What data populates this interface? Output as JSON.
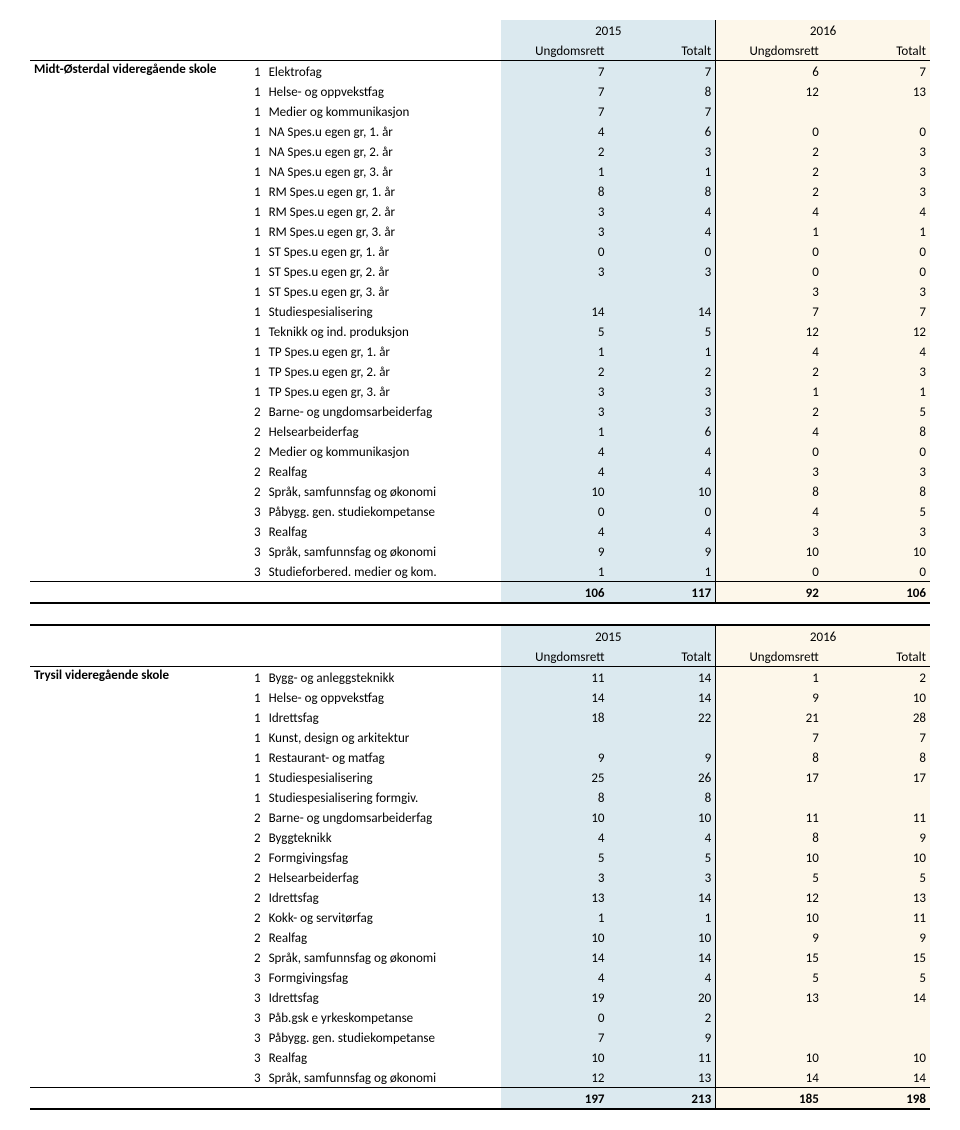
{
  "header": {
    "year_2015": "2015",
    "year_2016": "2016",
    "ungdomsrett": "Ungdomsrett",
    "totalt": "Totalt"
  },
  "blocks": [
    {
      "school": "Midt-Østerdal videregående skole",
      "rows": [
        {
          "level": "1",
          "course": "Elektrofag",
          "u15": "7",
          "t15": "7",
          "u16": "6",
          "t16": "7"
        },
        {
          "level": "1",
          "course": "Helse- og oppvekstfag",
          "u15": "7",
          "t15": "8",
          "u16": "12",
          "t16": "13"
        },
        {
          "level": "1",
          "course": "Medier og kommunikasjon",
          "u15": "7",
          "t15": "7",
          "u16": "",
          "t16": ""
        },
        {
          "level": "1",
          "course": "NA Spes.u egen gr, 1. år",
          "u15": "4",
          "t15": "6",
          "u16": "0",
          "t16": "0"
        },
        {
          "level": "1",
          "course": "NA Spes.u egen gr, 2. år",
          "u15": "2",
          "t15": "3",
          "u16": "2",
          "t16": "3"
        },
        {
          "level": "1",
          "course": "NA Spes.u egen gr, 3. år",
          "u15": "1",
          "t15": "1",
          "u16": "2",
          "t16": "3"
        },
        {
          "level": "1",
          "course": "RM Spes.u egen gr, 1. år",
          "u15": "8",
          "t15": "8",
          "u16": "2",
          "t16": "3"
        },
        {
          "level": "1",
          "course": "RM Spes.u egen gr, 2. år",
          "u15": "3",
          "t15": "4",
          "u16": "4",
          "t16": "4"
        },
        {
          "level": "1",
          "course": "RM Spes.u egen gr, 3. år",
          "u15": "3",
          "t15": "4",
          "u16": "1",
          "t16": "1"
        },
        {
          "level": "1",
          "course": "ST Spes.u egen gr, 1. år",
          "u15": "0",
          "t15": "0",
          "u16": "0",
          "t16": "0"
        },
        {
          "level": "1",
          "course": "ST Spes.u egen gr, 2. år",
          "u15": "3",
          "t15": "3",
          "u16": "0",
          "t16": "0"
        },
        {
          "level": "1",
          "course": "ST Spes.u egen gr, 3. år",
          "u15": "",
          "t15": "",
          "u16": "3",
          "t16": "3"
        },
        {
          "level": "1",
          "course": "Studiespesialisering",
          "u15": "14",
          "t15": "14",
          "u16": "7",
          "t16": "7"
        },
        {
          "level": "1",
          "course": "Teknikk og ind. produksjon",
          "u15": "5",
          "t15": "5",
          "u16": "12",
          "t16": "12"
        },
        {
          "level": "1",
          "course": "TP Spes.u egen gr, 1. år",
          "u15": "1",
          "t15": "1",
          "u16": "4",
          "t16": "4"
        },
        {
          "level": "1",
          "course": "TP Spes.u egen gr, 2. år",
          "u15": "2",
          "t15": "2",
          "u16": "2",
          "t16": "3"
        },
        {
          "level": "1",
          "course": "TP Spes.u egen gr, 3. år",
          "u15": "3",
          "t15": "3",
          "u16": "1",
          "t16": "1"
        },
        {
          "level": "2",
          "course": "Barne- og ungdomsarbeiderfag",
          "u15": "3",
          "t15": "3",
          "u16": "2",
          "t16": "5"
        },
        {
          "level": "2",
          "course": "Helsearbeiderfag",
          "u15": "1",
          "t15": "6",
          "u16": "4",
          "t16": "8"
        },
        {
          "level": "2",
          "course": "Medier og kommunikasjon",
          "u15": "4",
          "t15": "4",
          "u16": "0",
          "t16": "0"
        },
        {
          "level": "2",
          "course": "Realfag",
          "u15": "4",
          "t15": "4",
          "u16": "3",
          "t16": "3"
        },
        {
          "level": "2",
          "course": "Språk, samfunnsfag og økonomi",
          "u15": "10",
          "t15": "10",
          "u16": "8",
          "t16": "8"
        },
        {
          "level": "3",
          "course": "Påbygg. gen. studiekompetanse",
          "u15": "0",
          "t15": "0",
          "u16": "4",
          "t16": "5"
        },
        {
          "level": "3",
          "course": "Realfag",
          "u15": "4",
          "t15": "4",
          "u16": "3",
          "t16": "3"
        },
        {
          "level": "3",
          "course": "Språk, samfunnsfag og økonomi",
          "u15": "9",
          "t15": "9",
          "u16": "10",
          "t16": "10"
        },
        {
          "level": "3",
          "course": "Studieforbered. medier og kom.",
          "u15": "1",
          "t15": "1",
          "u16": "0",
          "t16": "0"
        }
      ],
      "totals": {
        "u15": "106",
        "t15": "117",
        "u16": "92",
        "t16": "106"
      }
    },
    {
      "school": "Trysil videregående skole",
      "rows": [
        {
          "level": "1",
          "course": "Bygg- og anleggsteknikk",
          "u15": "11",
          "t15": "14",
          "u16": "1",
          "t16": "2"
        },
        {
          "level": "1",
          "course": "Helse- og oppvekstfag",
          "u15": "14",
          "t15": "14",
          "u16": "9",
          "t16": "10"
        },
        {
          "level": "1",
          "course": "Idrettsfag",
          "u15": "18",
          "t15": "22",
          "u16": "21",
          "t16": "28"
        },
        {
          "level": "1",
          "course": "Kunst, design og arkitektur",
          "u15": "",
          "t15": "",
          "u16": "7",
          "t16": "7"
        },
        {
          "level": "1",
          "course": "Restaurant- og matfag",
          "u15": "9",
          "t15": "9",
          "u16": "8",
          "t16": "8"
        },
        {
          "level": "1",
          "course": "Studiespesialisering",
          "u15": "25",
          "t15": "26",
          "u16": "17",
          "t16": "17"
        },
        {
          "level": "1",
          "course": "Studiespesialisering formgiv.",
          "u15": "8",
          "t15": "8",
          "u16": "",
          "t16": ""
        },
        {
          "level": "2",
          "course": "Barne- og ungdomsarbeiderfag",
          "u15": "10",
          "t15": "10",
          "u16": "11",
          "t16": "11"
        },
        {
          "level": "2",
          "course": "Byggteknikk",
          "u15": "4",
          "t15": "4",
          "u16": "8",
          "t16": "9"
        },
        {
          "level": "2",
          "course": "Formgivingsfag",
          "u15": "5",
          "t15": "5",
          "u16": "10",
          "t16": "10"
        },
        {
          "level": "2",
          "course": "Helsearbeiderfag",
          "u15": "3",
          "t15": "3",
          "u16": "5",
          "t16": "5"
        },
        {
          "level": "2",
          "course": "Idrettsfag",
          "u15": "13",
          "t15": "14",
          "u16": "12",
          "t16": "13"
        },
        {
          "level": "2",
          "course": "Kokk- og servitørfag",
          "u15": "1",
          "t15": "1",
          "u16": "10",
          "t16": "11"
        },
        {
          "level": "2",
          "course": "Realfag",
          "u15": "10",
          "t15": "10",
          "u16": "9",
          "t16": "9"
        },
        {
          "level": "2",
          "course": "Språk, samfunnsfag og økonomi",
          "u15": "14",
          "t15": "14",
          "u16": "15",
          "t16": "15"
        },
        {
          "level": "3",
          "course": "Formgivingsfag",
          "u15": "4",
          "t15": "4",
          "u16": "5",
          "t16": "5"
        },
        {
          "level": "3",
          "course": "Idrettsfag",
          "u15": "19",
          "t15": "20",
          "u16": "13",
          "t16": "14"
        },
        {
          "level": "3",
          "course": "Påb.gsk e yrkeskompetanse",
          "u15": "0",
          "t15": "2",
          "u16": "",
          "t16": ""
        },
        {
          "level": "3",
          "course": "Påbygg. gen. studiekompetanse",
          "u15": "7",
          "t15": "9",
          "u16": "",
          "t16": ""
        },
        {
          "level": "3",
          "course": "Realfag",
          "u15": "10",
          "t15": "11",
          "u16": "10",
          "t16": "10"
        },
        {
          "level": "3",
          "course": "Språk, samfunnsfag og økonomi",
          "u15": "12",
          "t15": "13",
          "u16": "14",
          "t16": "14"
        }
      ],
      "totals": {
        "u15": "197",
        "t15": "213",
        "u16": "185",
        "t16": "198"
      }
    }
  ]
}
